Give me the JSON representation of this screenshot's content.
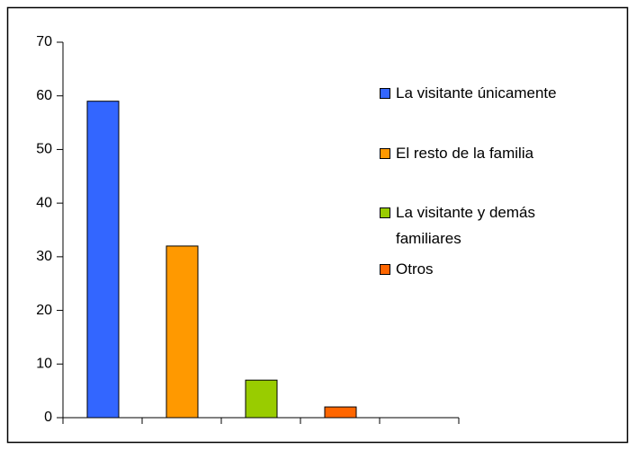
{
  "chart_data": {
    "type": "bar",
    "categories": [
      "La visitante únicamente",
      "El resto de la familia",
      "La visitante y demás familiares",
      "Otros",
      null
    ],
    "values": [
      59,
      32,
      7,
      2,
      null
    ],
    "colors": [
      "#3366ff",
      "#ff9900",
      "#99cc00",
      "#ff6600"
    ],
    "ylim": [
      0,
      70
    ],
    "yticks": [
      0,
      10,
      20,
      30,
      40,
      50,
      60,
      70
    ],
    "grid": false,
    "legend": "right"
  }
}
